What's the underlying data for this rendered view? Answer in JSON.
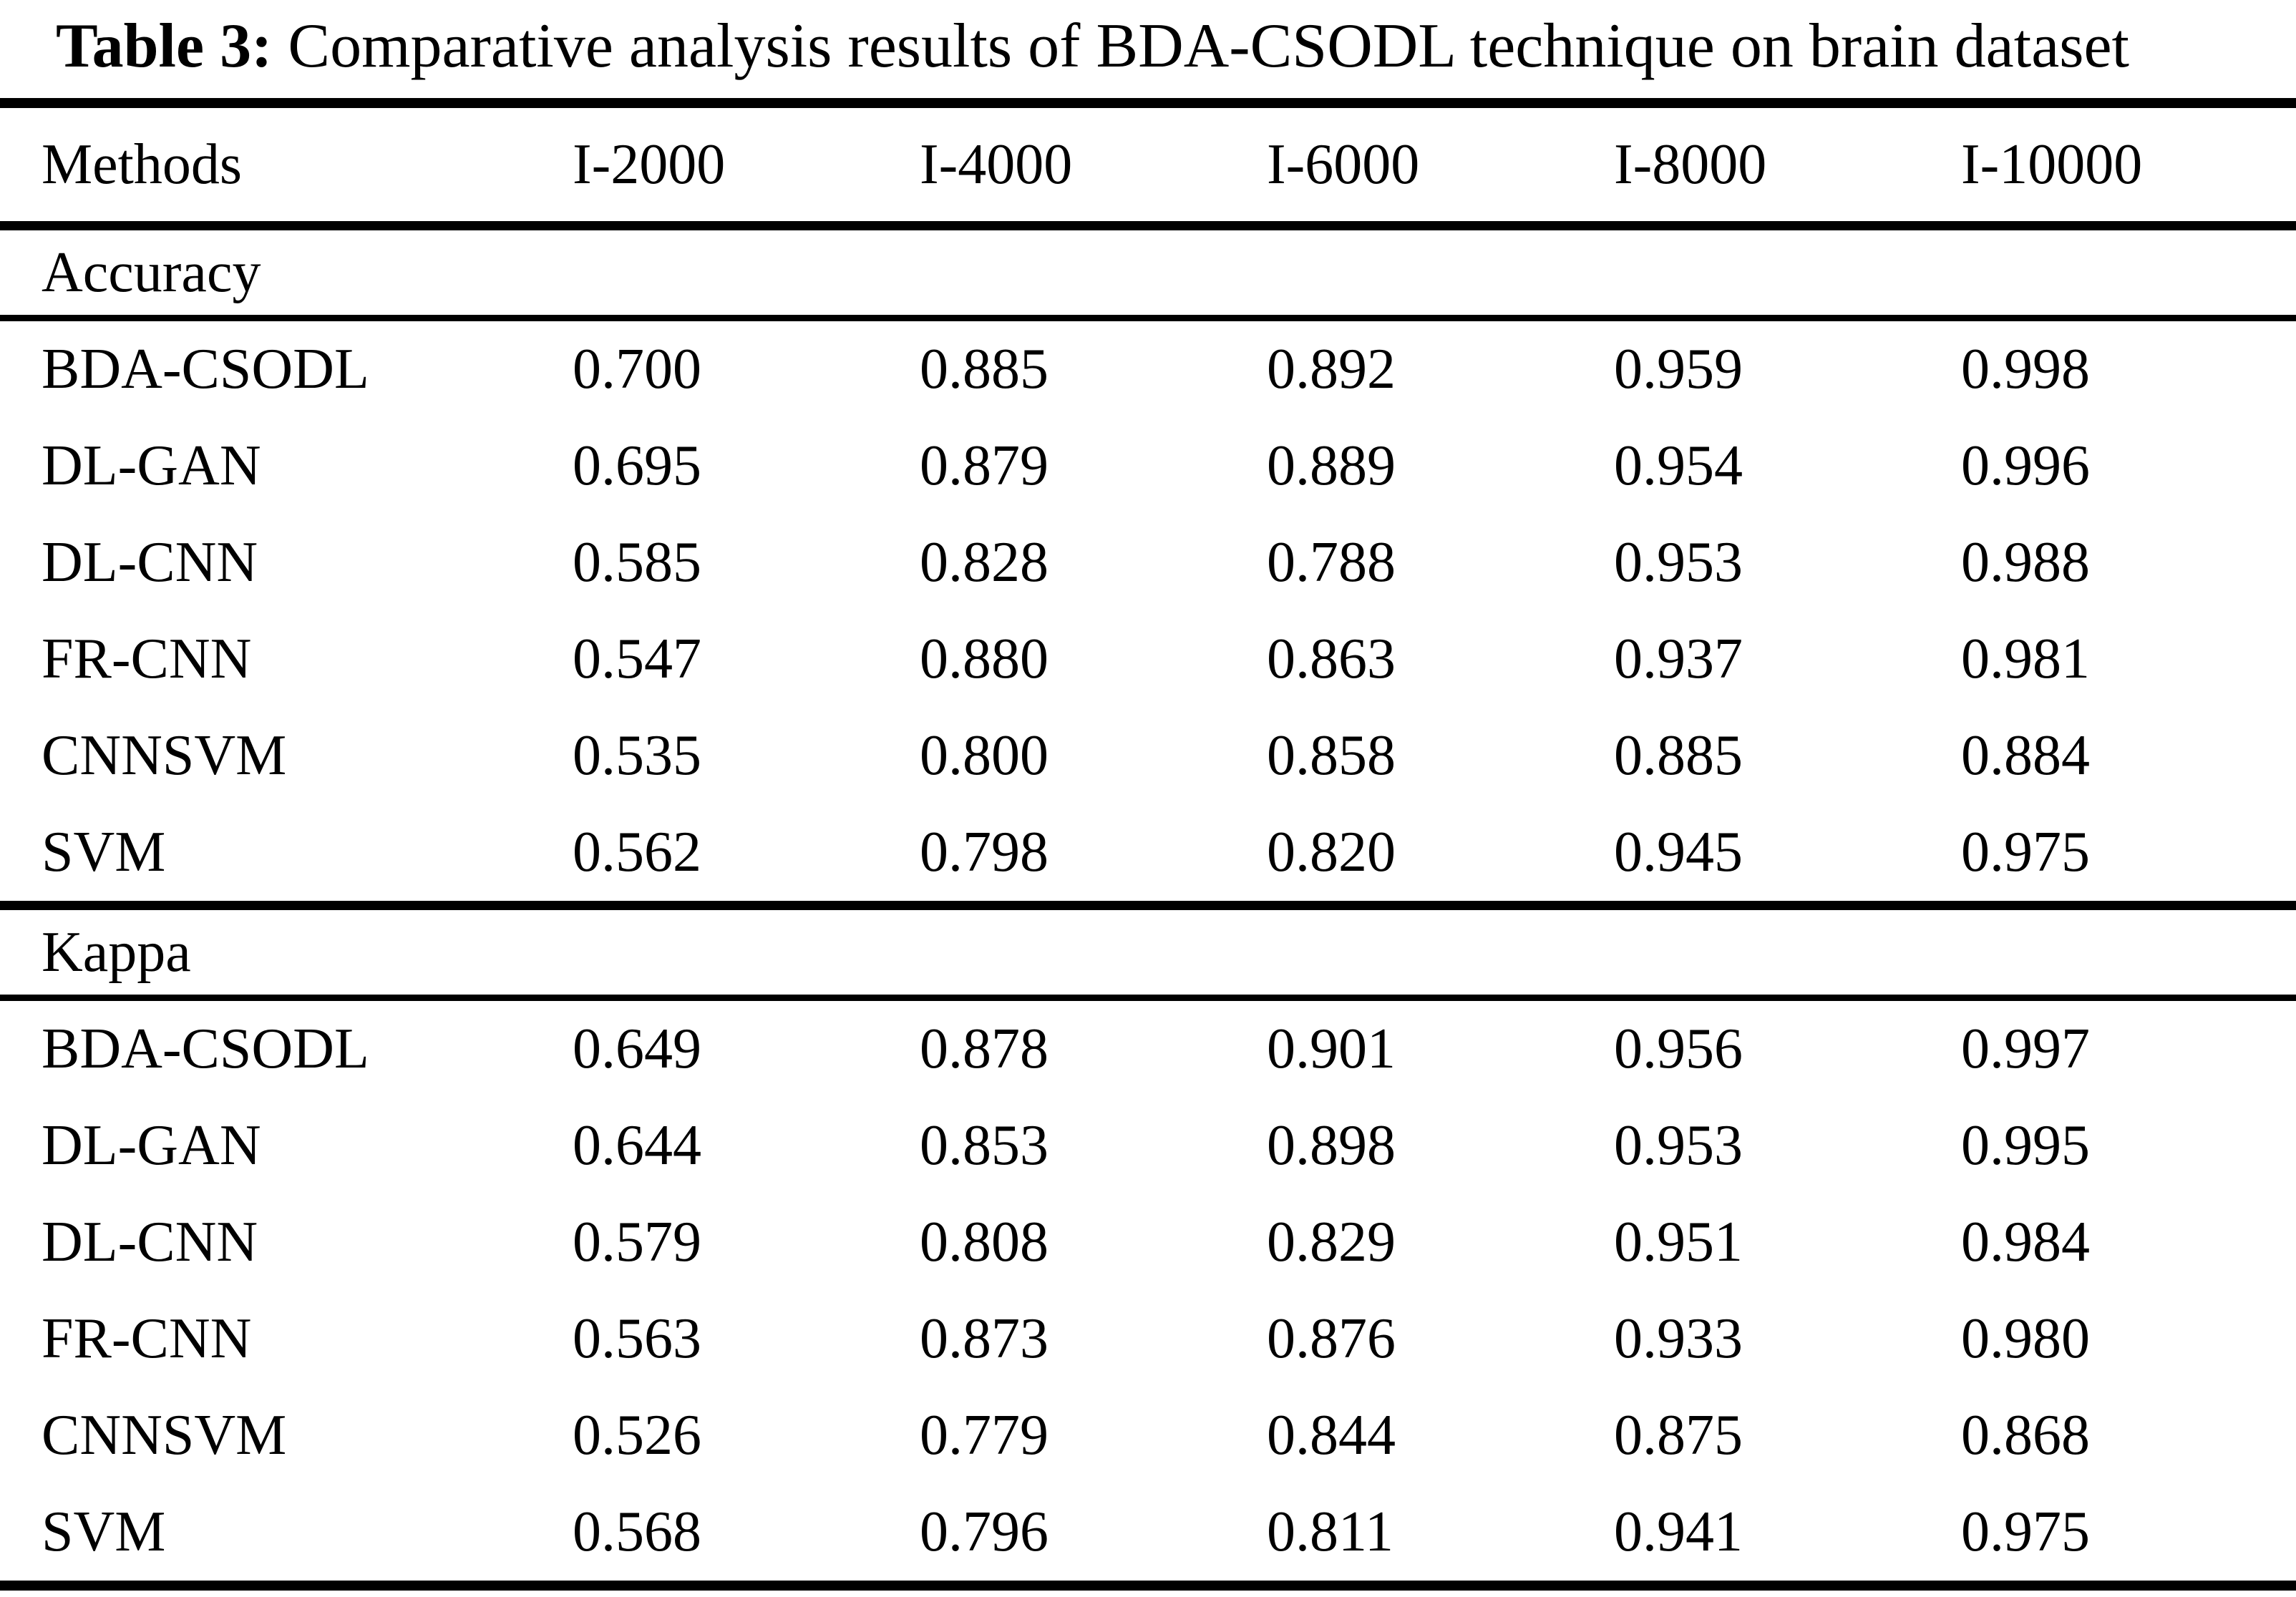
{
  "title": {
    "label": "Table 3:",
    "text": "Comparative analysis results of BDA-CSODL technique on brain dataset"
  },
  "table": {
    "columns": [
      "Methods",
      "I-2000",
      "I-4000",
      "I-6000",
      "I-8000",
      "I-10000"
    ],
    "sections": [
      {
        "label": "Accuracy",
        "rows": [
          {
            "method": "BDA-CSODL",
            "values": [
              "0.700",
              "0.885",
              "0.892",
              "0.959",
              "0.998"
            ]
          },
          {
            "method": "DL-GAN",
            "values": [
              "0.695",
              "0.879",
              "0.889",
              "0.954",
              "0.996"
            ]
          },
          {
            "method": "DL-CNN",
            "values": [
              "0.585",
              "0.828",
              "0.788",
              "0.953",
              "0.988"
            ]
          },
          {
            "method": "FR-CNN",
            "values": [
              "0.547",
              "0.880",
              "0.863",
              "0.937",
              "0.981"
            ]
          },
          {
            "method": "CNNSVM",
            "values": [
              "0.535",
              "0.800",
              "0.858",
              "0.885",
              "0.884"
            ]
          },
          {
            "method": "SVM",
            "values": [
              "0.562",
              "0.798",
              "0.820",
              "0.945",
              "0.975"
            ]
          }
        ]
      },
      {
        "label": "Kappa",
        "rows": [
          {
            "method": "BDA-CSODL",
            "values": [
              "0.649",
              "0.878",
              "0.901",
              "0.956",
              "0.997"
            ]
          },
          {
            "method": "DL-GAN",
            "values": [
              "0.644",
              "0.853",
              "0.898",
              "0.953",
              "0.995"
            ]
          },
          {
            "method": "DL-CNN",
            "values": [
              "0.579",
              "0.808",
              "0.829",
              "0.951",
              "0.984"
            ]
          },
          {
            "method": "FR-CNN",
            "values": [
              "0.563",
              "0.873",
              "0.876",
              "0.933",
              "0.980"
            ]
          },
          {
            "method": "CNNSVM",
            "values": [
              "0.526",
              "0.779",
              "0.844",
              "0.875",
              "0.868"
            ]
          },
          {
            "method": "SVM",
            "values": [
              "0.568",
              "0.796",
              "0.811",
              "0.941",
              "0.975"
            ]
          }
        ]
      }
    ]
  }
}
